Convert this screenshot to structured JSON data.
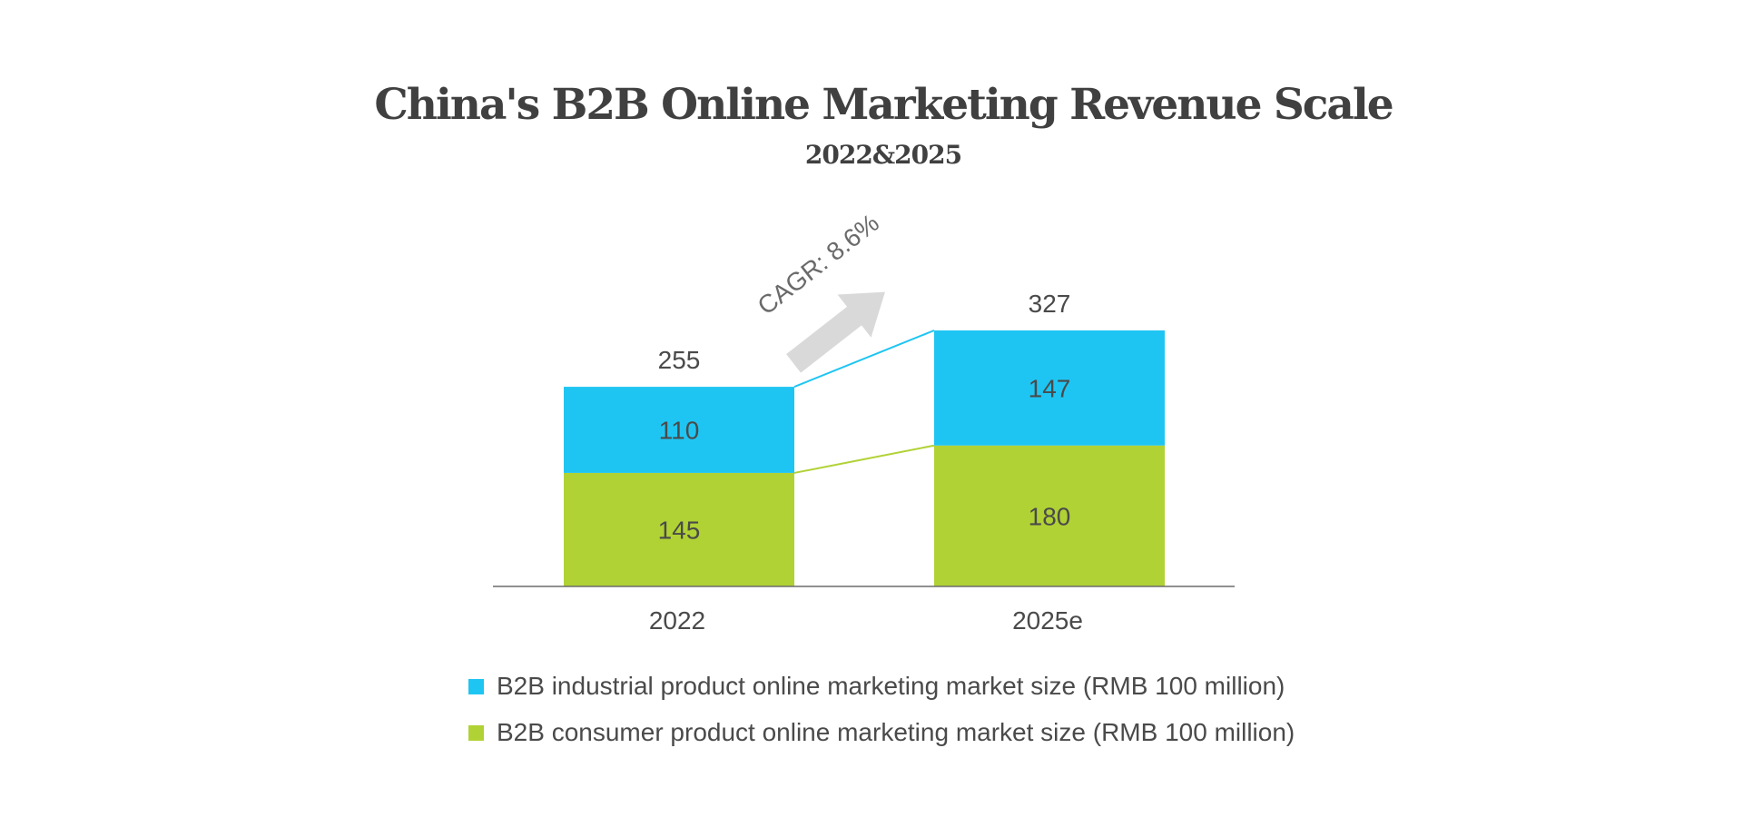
{
  "chart_data": {
    "type": "bar",
    "stacked": true,
    "title": "China's B2B Online Marketing Revenue Scale",
    "subtitle": "2022&2025",
    "categories": [
      "2022",
      "2025e"
    ],
    "series": [
      {
        "name": "B2B consumer product online marketing market size (RMB 100 million)",
        "values": [
          145,
          180
        ],
        "color": "#b1d235"
      },
      {
        "name": "B2B industrial product online marketing market size (RMB 100 million)",
        "values": [
          110,
          147
        ],
        "color": "#1fc5f2"
      }
    ],
    "totals": [
      255,
      327
    ],
    "annotation": "CAGR: 8.6%",
    "ylim": [
      0,
      327
    ],
    "grid": false,
    "legend_position": "bottom"
  },
  "legend_items": [
    {
      "label": "B2B industrial product online marketing market size (RMB 100 million)",
      "color": "#1fc5f2"
    },
    {
      "label": "B2B consumer product online marketing market size (RMB 100 million)",
      "color": "#b1d235"
    }
  ]
}
